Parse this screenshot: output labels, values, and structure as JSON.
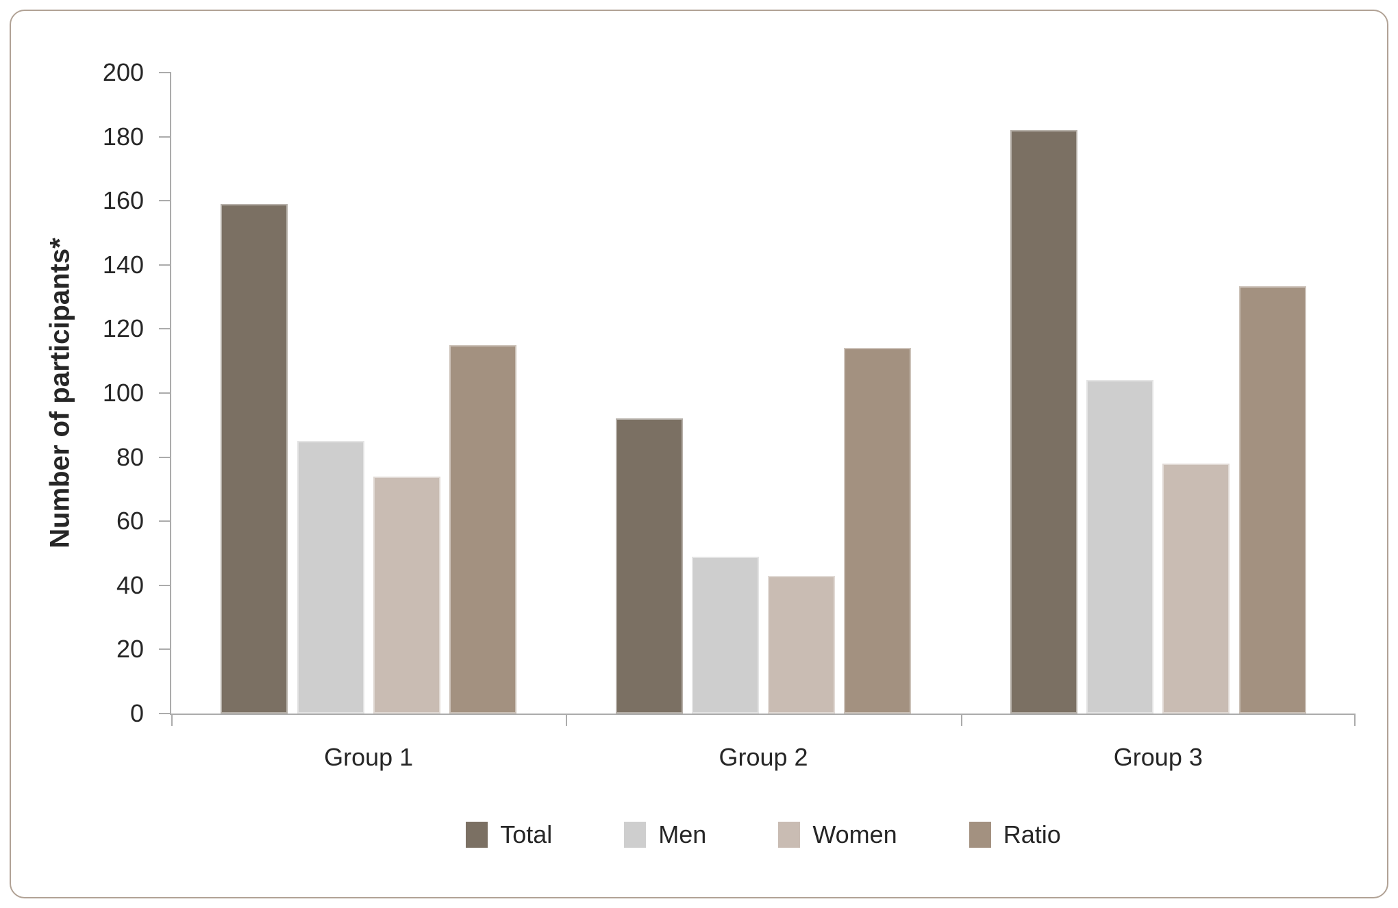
{
  "figure": {
    "border_color": "#B1A295",
    "background_color": "#FFFFFF",
    "text_color": "#262626",
    "axis_line_color": "#ABABAB"
  },
  "chart_data": {
    "type": "bar",
    "title": "",
    "xlabel": "",
    "ylabel": "Number of participants*",
    "ylim": [
      0,
      200
    ],
    "ytick_step": 20,
    "yticks": [
      0,
      20,
      40,
      60,
      80,
      100,
      120,
      140,
      160,
      180,
      200
    ],
    "grid": false,
    "legend_position": "bottom",
    "categories": [
      "Group 1",
      "Group 2",
      "Group 3"
    ],
    "series": [
      {
        "name": "Total",
        "color": "#7B7063",
        "values": [
          159,
          92,
          182
        ]
      },
      {
        "name": "Men",
        "color": "#CECECE",
        "values": [
          85,
          49,
          104
        ]
      },
      {
        "name": "Women",
        "color": "#C9BCB3",
        "values": [
          74,
          43,
          78
        ]
      },
      {
        "name": "Ratio",
        "color": "#A39180",
        "values": [
          115,
          114,
          133.3
        ]
      }
    ]
  }
}
